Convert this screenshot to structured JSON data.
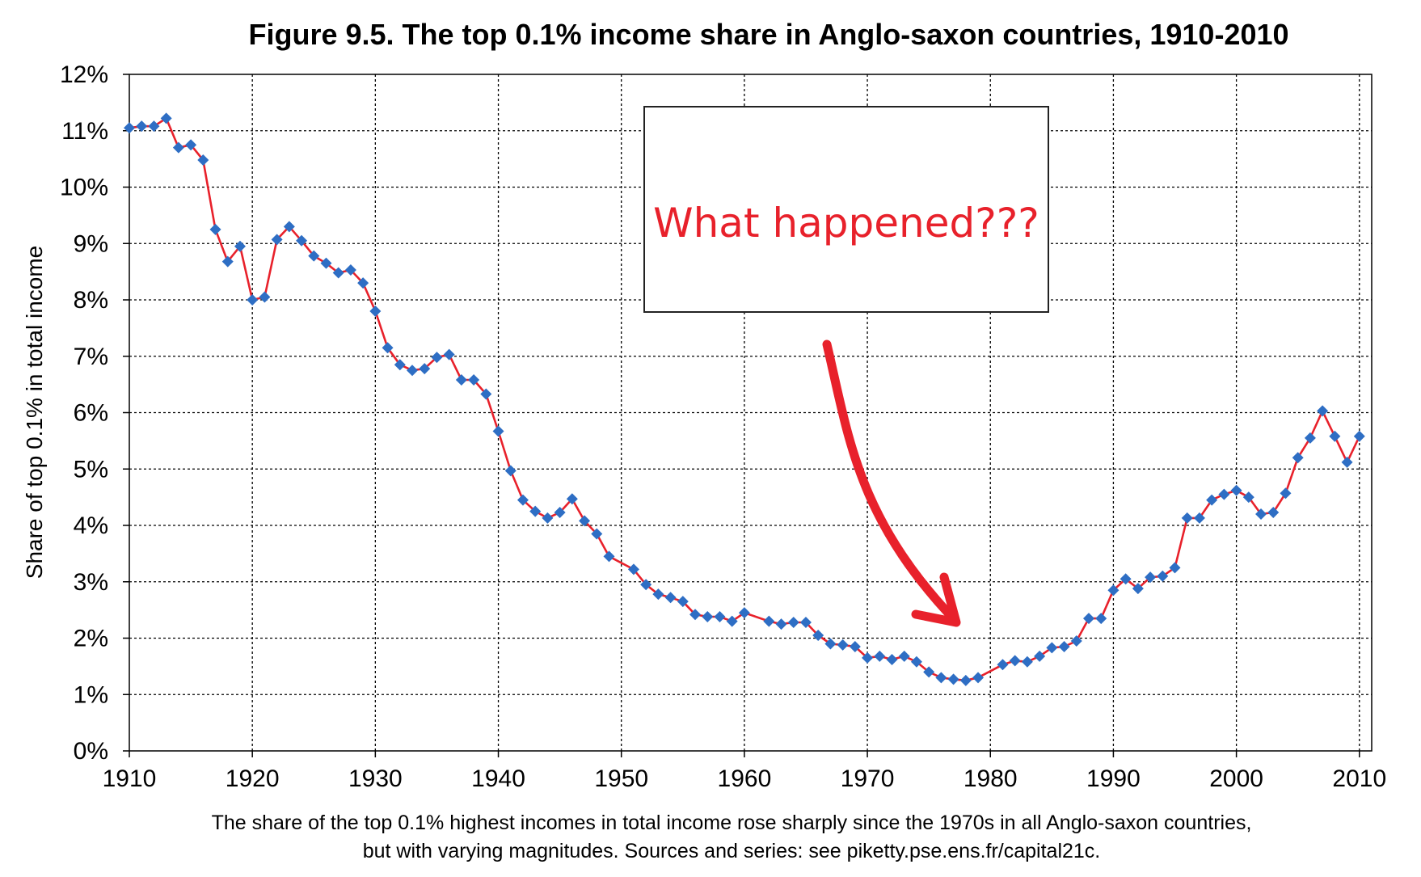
{
  "chart_data": {
    "type": "line",
    "title": "Figure 9.5. The top 0.1% income share in Anglo-saxon countries, 1910-2010",
    "ylabel": "Share of top 0.1% in total income",
    "xlabel": "",
    "xlim": [
      1910,
      2011
    ],
    "ylim": [
      0,
      12
    ],
    "x_ticks": [
      "1910",
      "1920",
      "1930",
      "1940",
      "1950",
      "1960",
      "1970",
      "1980",
      "1990",
      "2000",
      "2010"
    ],
    "y_ticks": [
      "0%",
      "1%",
      "2%",
      "3%",
      "4%",
      "5%",
      "6%",
      "7%",
      "8%",
      "9%",
      "10%",
      "11%",
      "12%"
    ],
    "grid": true,
    "line_color": "#e8212b",
    "marker_color": "#2e6ec4",
    "series": [
      {
        "x": [
          1910,
          1911,
          1912,
          1913,
          1914,
          1915,
          1916,
          1917,
          1918,
          1919,
          1920,
          1921,
          1922,
          1923,
          1924,
          1925,
          1926,
          1927,
          1928,
          1929,
          1930,
          1931,
          1932,
          1933,
          1934,
          1935,
          1936,
          1937,
          1938,
          1939,
          1940,
          1941,
          1942,
          1943,
          1944,
          1945,
          1946,
          1947,
          1948,
          1949,
          1951,
          1952,
          1953,
          1954,
          1955,
          1956,
          1957,
          1958,
          1959,
          1960,
          1962,
          1963,
          1964,
          1965,
          1966,
          1967,
          1968,
          1969,
          1970,
          1971,
          1972,
          1973,
          1974,
          1975,
          1976,
          1977,
          1978,
          1979,
          1981,
          1982,
          1983,
          1984,
          1985,
          1986,
          1987,
          1988,
          1989,
          1990,
          1991,
          1992,
          1993,
          1994,
          1995,
          1996,
          1997,
          1998,
          1999,
          2000,
          2001,
          2002,
          2003,
          2004,
          2005,
          2006,
          2007,
          2008,
          2009,
          2010
        ],
        "values": [
          11.05,
          11.08,
          11.08,
          11.22,
          10.7,
          10.75,
          10.48,
          9.25,
          8.68,
          8.95,
          8.0,
          8.05,
          9.07,
          9.3,
          9.05,
          8.78,
          8.65,
          8.48,
          8.53,
          8.3,
          7.8,
          7.15,
          6.85,
          6.75,
          6.78,
          6.98,
          7.03,
          6.58,
          6.58,
          6.33,
          5.67,
          4.97,
          4.45,
          4.25,
          4.13,
          4.23,
          4.47,
          4.08,
          3.85,
          3.45,
          3.22,
          2.95,
          2.78,
          2.72,
          2.65,
          2.42,
          2.38,
          2.38,
          2.3,
          2.45,
          2.3,
          2.25,
          2.28,
          2.28,
          2.05,
          1.9,
          1.88,
          1.85,
          1.65,
          1.68,
          1.62,
          1.68,
          1.58,
          1.4,
          1.3,
          1.27,
          1.25,
          1.3,
          1.53,
          1.6,
          1.58,
          1.68,
          1.83,
          1.85,
          1.95,
          2.35,
          2.35,
          2.85,
          3.05,
          2.88,
          3.08,
          3.1,
          3.25,
          4.13,
          4.13,
          4.45,
          4.55,
          4.62,
          4.5,
          4.2,
          4.23,
          4.57,
          5.2,
          5.55,
          6.03,
          5.58,
          5.12,
          5.58
        ]
      }
    ]
  },
  "annotation": {
    "text": "What happened???",
    "color": "#e8212b"
  },
  "caption": {
    "line1": "The share of the top 0.1% highest incomes in total income rose sharply since the 1970s in all Anglo-saxon countries,",
    "line2": "but with varying magnitudes. Sources and series: see piketty.pse.ens.fr/capital21c."
  }
}
